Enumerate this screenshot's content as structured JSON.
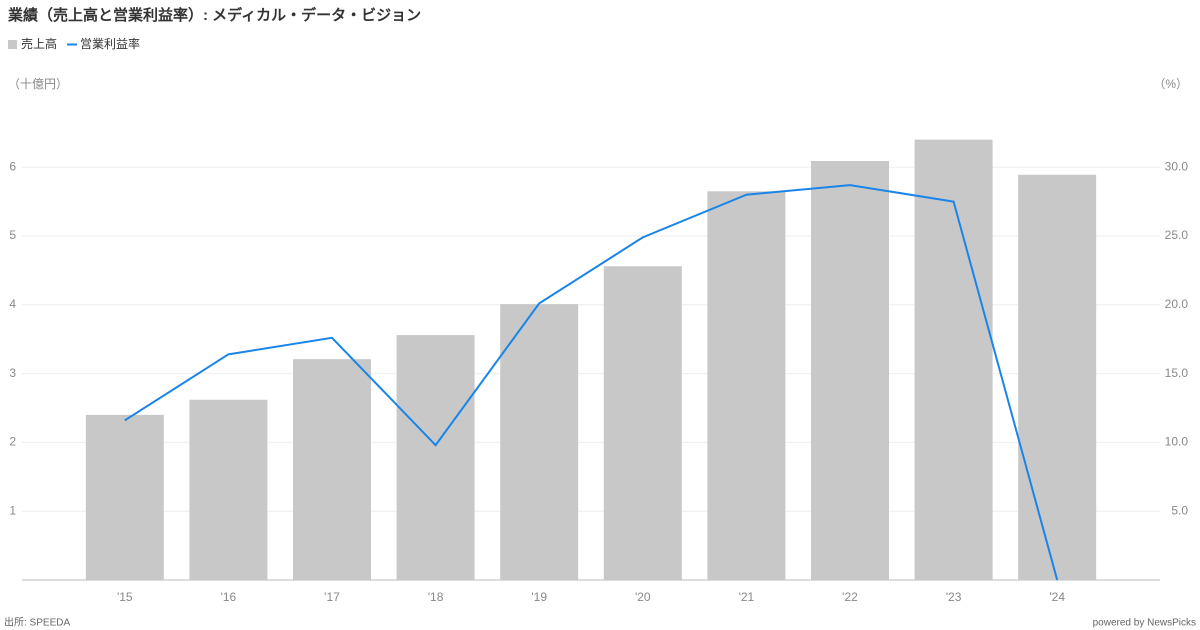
{
  "chart_data": {
    "type": "bar-line",
    "title": "業績（売上高と営業利益率）: メディカル・データ・ビジョン",
    "y_label": "（十億円）",
    "y2_label": "（%）",
    "source": "出所: SPEEDA",
    "credit": "powered by NewsPicks",
    "categories": [
      "'15",
      "'16",
      "'17",
      "'18",
      "'19",
      "'20",
      "'21",
      "'22",
      "'23",
      "'24"
    ],
    "series": [
      {
        "name": "売上高",
        "type": "bar",
        "color": "#c8c8c8",
        "values": [
          2.4,
          2.62,
          3.21,
          3.56,
          4.01,
          4.56,
          5.65,
          6.09,
          6.4,
          5.89
        ]
      },
      {
        "name": "営業利益率",
        "type": "line",
        "axis": "y2",
        "color": "#1a85e8",
        "values": [
          11.6,
          16.4,
          17.6,
          9.8,
          20.1,
          24.9,
          28.0,
          28.7,
          27.5,
          0
        ]
      }
    ],
    "ylim": [
      0,
      7
    ],
    "yticks": [
      1,
      2,
      3,
      4,
      5,
      6
    ],
    "y2lim": [
      0,
      35
    ],
    "y2ticks": [
      {
        "value": 5,
        "label": "5.0"
      },
      {
        "value": 10,
        "label": "10.0"
      },
      {
        "value": 15,
        "label": "15.0"
      },
      {
        "value": 20,
        "label": "20.0"
      },
      {
        "value": 25,
        "label": "25.0"
      },
      {
        "value": 30,
        "label": "30.0"
      }
    ],
    "grid": true
  }
}
